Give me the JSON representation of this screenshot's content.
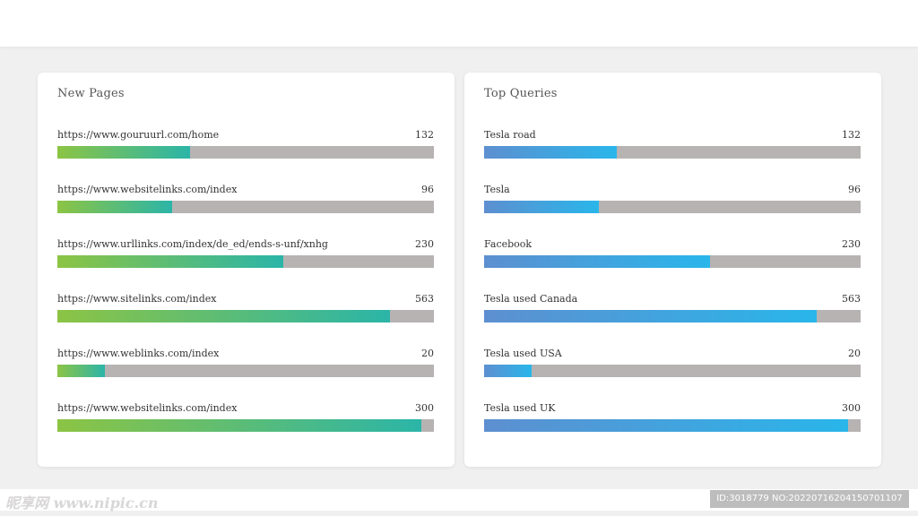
{
  "panels": [
    {
      "title": "New Pages",
      "items": [
        {
          "label": "https://www.gouruurl.com/home",
          "value": "132",
          "fill": 0.352
        },
        {
          "label": "https://www.websitelinks.com/index",
          "value": "96",
          "fill": 0.305
        },
        {
          "label": "https://www.urllinks.com/index/de_ed/ends-s-unf/xnhg",
          "value": "230",
          "fill": 0.6
        },
        {
          "label": "https://www.sitelinks.com/index",
          "value": "563",
          "fill": 0.883
        },
        {
          "label": "https://www.weblinks.com/index",
          "value": "20",
          "fill": 0.126
        },
        {
          "label": "https://www.websitelinks.com/index",
          "value": "300",
          "fill": 0.967
        }
      ]
    },
    {
      "title": "Top Queries",
      "items": [
        {
          "label": "Tesla road",
          "value": "132",
          "fill": 0.352
        },
        {
          "label": "Tesla",
          "value": "96",
          "fill": 0.305
        },
        {
          "label": "Facebook",
          "value": "230",
          "fill": 0.6
        },
        {
          "label": "Tesla used Canada",
          "value": "563",
          "fill": 0.883
        },
        {
          "label": "Tesla used USA",
          "value": "20",
          "fill": 0.126
        },
        {
          "label": "Tesla used UK",
          "value": "300",
          "fill": 0.967
        }
      ]
    }
  ],
  "colors": {
    "left_bar_start": "#8cc444",
    "left_bar_end": "#2bb5a8",
    "right_bar_start": "#5d8fd0",
    "right_bar_end": "#29b6ea",
    "track": "#b7b3b3"
  },
  "watermark": {
    "left_text": "昵享网 www.nipic.cn",
    "right_text": "ID:3018779 NO:20220716204150701107"
  }
}
